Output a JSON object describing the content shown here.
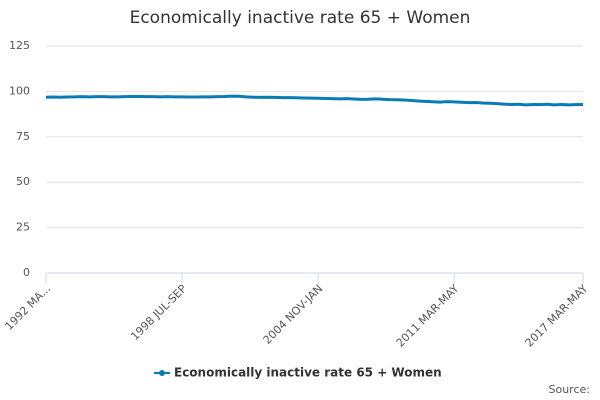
{
  "chart_data": {
    "type": "line",
    "title": "Economically inactive rate 65 + Women",
    "categories": [
      "1992 MA...",
      null,
      null,
      null,
      null,
      null,
      null,
      null,
      null,
      null,
      null,
      null,
      null,
      null,
      null,
      null,
      null,
      null,
      null,
      "1998 JUL-SEP",
      null,
      null,
      null,
      null,
      null,
      null,
      null,
      null,
      null,
      null,
      null,
      null,
      null,
      null,
      null,
      null,
      null,
      null,
      "2004 NOV-JAN",
      null,
      null,
      null,
      null,
      null,
      null,
      null,
      null,
      null,
      null,
      null,
      null,
      null,
      null,
      null,
      null,
      null,
      null,
      "2011 MAR-MAY",
      null,
      null,
      null,
      null,
      null,
      null,
      null,
      null,
      null,
      null,
      null,
      null,
      null,
      null,
      null,
      null,
      null,
      "2017 MAR-MAY"
    ],
    "series": [
      {
        "name": "Economically inactive rate 65 + Women",
        "color": "#0b7bb5",
        "values": [
          96.8,
          96.9,
          96.8,
          96.9,
          97.0,
          97.1,
          97.0,
          97.1,
          97.1,
          97.0,
          97.0,
          97.1,
          97.2,
          97.2,
          97.1,
          97.1,
          97.0,
          97.1,
          97.0,
          97.0,
          96.9,
          96.9,
          97.0,
          97.0,
          97.1,
          97.2,
          97.4,
          97.3,
          97.0,
          96.8,
          96.7,
          96.8,
          96.7,
          96.6,
          96.6,
          96.5,
          96.4,
          96.3,
          96.2,
          96.1,
          96.0,
          95.9,
          96.0,
          95.8,
          95.6,
          95.7,
          95.9,
          95.7,
          95.5,
          95.4,
          95.3,
          95.0,
          94.7,
          94.5,
          94.3,
          94.1,
          94.4,
          94.2,
          94.0,
          93.8,
          93.9,
          93.6,
          93.5,
          93.3,
          93.0,
          92.8,
          92.9,
          92.6,
          92.8,
          92.7,
          92.9,
          92.6,
          92.8,
          92.6,
          92.7,
          92.8
        ]
      }
    ],
    "ylim": [
      0,
      125
    ],
    "yticks": [
      0,
      25,
      50,
      75,
      100,
      125
    ],
    "grid": true,
    "legend": "bottom",
    "source": "Source:"
  }
}
